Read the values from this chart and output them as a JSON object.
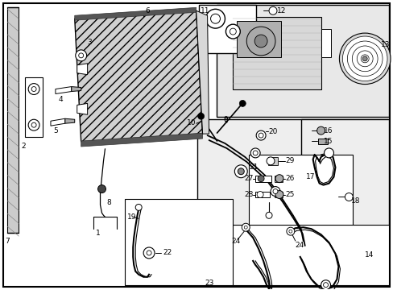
{
  "bg_color": "#ffffff",
  "line_color": "#000000",
  "text_color": "#000000",
  "fig_width": 4.89,
  "fig_height": 3.6,
  "dpi": 100,
  "box_fill": "#e8e8e8",
  "white": "#ffffff",
  "gray_light": "#d8d8d8",
  "gray_mid": "#b0b0b0",
  "condenser_fill": "#c8c8c8"
}
